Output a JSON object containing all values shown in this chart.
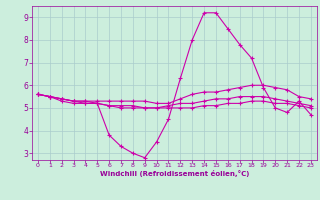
{
  "background_color": "#cceedd",
  "grid_color": "#aacccc",
  "line_color": "#cc00aa",
  "xlabel": "Windchill (Refroidissement éolien,°C)",
  "xlabel_color": "#990099",
  "tick_color": "#990099",
  "xlim": [
    -0.5,
    23.5
  ],
  "ylim": [
    2.7,
    9.5
  ],
  "xticks": [
    0,
    1,
    2,
    3,
    4,
    5,
    6,
    7,
    8,
    9,
    10,
    11,
    12,
    13,
    14,
    15,
    16,
    17,
    18,
    19,
    20,
    21,
    22,
    23
  ],
  "yticks": [
    3,
    4,
    5,
    6,
    7,
    8,
    9
  ],
  "series": [
    {
      "x": [
        0,
        1,
        2,
        3,
        4,
        5,
        6,
        7,
        8,
        9,
        10,
        11,
        12,
        13,
        14,
        15,
        16,
        17,
        18,
        19,
        20,
        21,
        22,
        23
      ],
      "y": [
        5.6,
        5.5,
        5.3,
        5.2,
        5.2,
        5.2,
        3.8,
        3.3,
        3.0,
        2.8,
        3.5,
        4.5,
        6.3,
        8.0,
        9.2,
        9.2,
        8.5,
        7.8,
        7.2,
        5.9,
        5.0,
        4.8,
        5.3,
        4.7
      ]
    },
    {
      "x": [
        0,
        1,
        2,
        3,
        4,
        5,
        6,
        7,
        8,
        9,
        10,
        11,
        12,
        13,
        14,
        15,
        16,
        17,
        18,
        19,
        20,
        21,
        22,
        23
      ],
      "y": [
        5.6,
        5.5,
        5.4,
        5.3,
        5.3,
        5.3,
        5.3,
        5.3,
        5.3,
        5.3,
        5.2,
        5.2,
        5.4,
        5.6,
        5.7,
        5.7,
        5.8,
        5.9,
        6.0,
        6.0,
        5.9,
        5.8,
        5.5,
        5.4
      ]
    },
    {
      "x": [
        0,
        1,
        2,
        3,
        4,
        5,
        6,
        7,
        8,
        9,
        10,
        11,
        12,
        13,
        14,
        15,
        16,
        17,
        18,
        19,
        20,
        21,
        22,
        23
      ],
      "y": [
        5.6,
        5.5,
        5.4,
        5.3,
        5.3,
        5.2,
        5.1,
        5.1,
        5.1,
        5.0,
        5.0,
        5.1,
        5.2,
        5.2,
        5.3,
        5.4,
        5.4,
        5.5,
        5.5,
        5.5,
        5.4,
        5.3,
        5.2,
        5.1
      ]
    },
    {
      "x": [
        0,
        1,
        2,
        3,
        4,
        5,
        6,
        7,
        8,
        9,
        10,
        11,
        12,
        13,
        14,
        15,
        16,
        17,
        18,
        19,
        20,
        21,
        22,
        23
      ],
      "y": [
        5.6,
        5.5,
        5.4,
        5.3,
        5.2,
        5.2,
        5.1,
        5.0,
        5.0,
        5.0,
        5.0,
        5.0,
        5.0,
        5.0,
        5.1,
        5.1,
        5.2,
        5.2,
        5.3,
        5.3,
        5.2,
        5.2,
        5.1,
        5.0
      ]
    }
  ]
}
